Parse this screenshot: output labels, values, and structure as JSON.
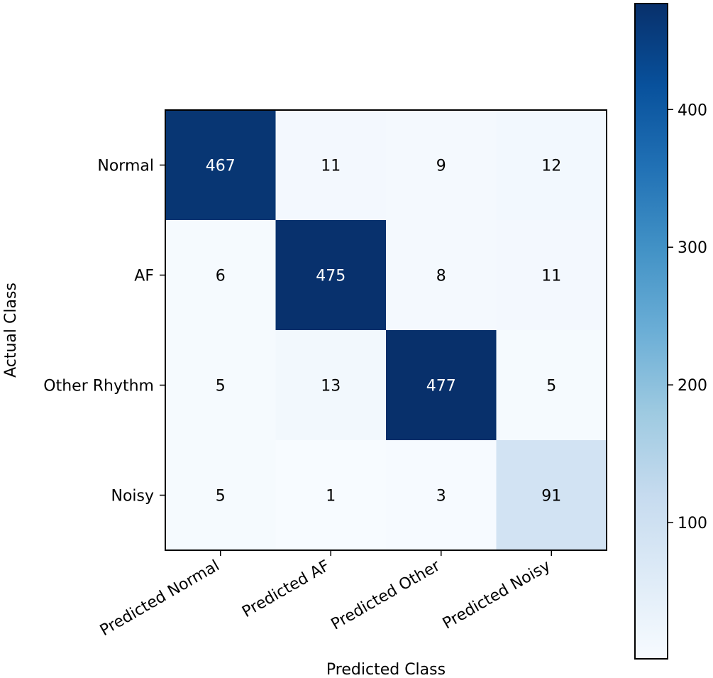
{
  "chart_data": {
    "type": "heatmap",
    "title": "",
    "xlabel": "Predicted Class",
    "ylabel": "Actual Class",
    "x_categories": [
      "Predicted Normal",
      "Predicted AF",
      "Predicted Other",
      "Predicted Noisy"
    ],
    "y_categories": [
      "Normal",
      "AF",
      "Other Rhythm",
      "Noisy"
    ],
    "matrix": [
      [
        467,
        11,
        9,
        12
      ],
      [
        6,
        475,
        8,
        11
      ],
      [
        5,
        13,
        477,
        5
      ],
      [
        5,
        1,
        3,
        91
      ]
    ],
    "colormap": "Blues",
    "colorbar": {
      "min": 1,
      "max": 477,
      "ticks": [
        100,
        200,
        300,
        400
      ],
      "tick_labels": [
        "100",
        "200",
        "300",
        "400"
      ]
    },
    "text_colors": {
      "dark": "#ffffff",
      "light": "#000000"
    }
  }
}
